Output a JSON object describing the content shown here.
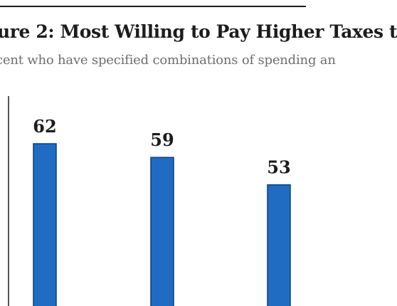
{
  "chart_data": {
    "type": "bar",
    "title": "ure 2: Most Willing to Pay Higher Taxes t",
    "subtitle": "cent who have specified combinations of spending an",
    "categories": [
      "",
      "",
      ""
    ],
    "values": [
      62,
      59,
      53
    ],
    "data_labels": [
      "62",
      "59",
      "53"
    ],
    "ylim": [
      0,
      70
    ],
    "colors": {
      "bar": "#1f6cc2",
      "bar_edge": "#0d3f7a",
      "axis": "#555555"
    }
  }
}
